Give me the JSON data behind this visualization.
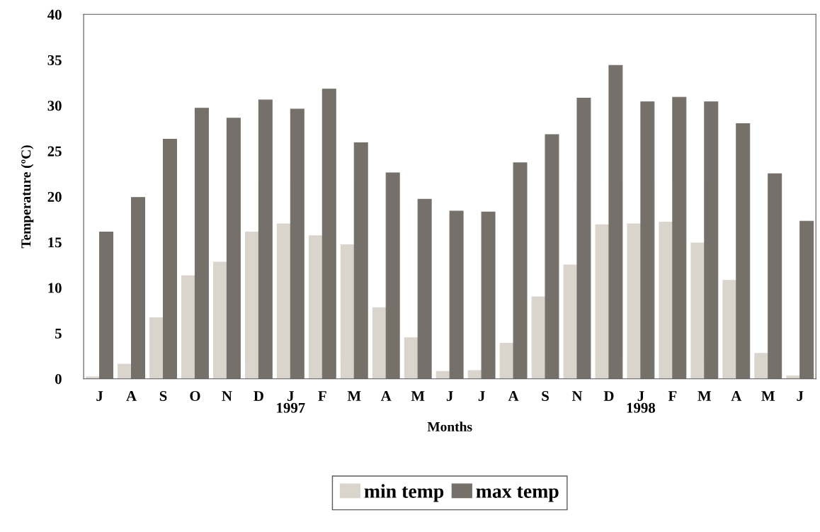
{
  "chart_data": {
    "type": "bar",
    "xlabel": "Months",
    "ylabel": "Temperature (ºC)",
    "categories": [
      "J",
      "A",
      "S",
      "O",
      "N",
      "D",
      "J\n1997",
      "F",
      "M",
      "A",
      "M",
      "J",
      "J",
      "A",
      "S",
      "N",
      "D",
      "J\n1998",
      "F",
      "M",
      "A",
      "M",
      "J"
    ],
    "series": [
      {
        "name": "min temp",
        "color": "#d9d5cd",
        "values": [
          0.2,
          1.6,
          6.7,
          11.3,
          12.8,
          16.1,
          17.0,
          15.7,
          14.7,
          7.8,
          4.5,
          0.8,
          0.9,
          3.9,
          9.0,
          12.5,
          16.9,
          17.0,
          17.2,
          14.9,
          10.8,
          2.8,
          0.3
        ]
      },
      {
        "name": "max temp",
        "color": "#75716a",
        "values": [
          16.1,
          19.9,
          26.3,
          29.7,
          28.6,
          30.6,
          29.6,
          31.8,
          25.9,
          22.6,
          19.7,
          18.4,
          18.3,
          23.7,
          26.8,
          30.8,
          34.4,
          30.4,
          30.9,
          30.4,
          28.0,
          22.5,
          17.3
        ]
      }
    ],
    "ylim": [
      0,
      40
    ],
    "yticks": [
      0,
      5,
      10,
      15,
      20,
      25,
      30,
      35,
      40
    ],
    "grid": false,
    "legend": "bottom"
  }
}
